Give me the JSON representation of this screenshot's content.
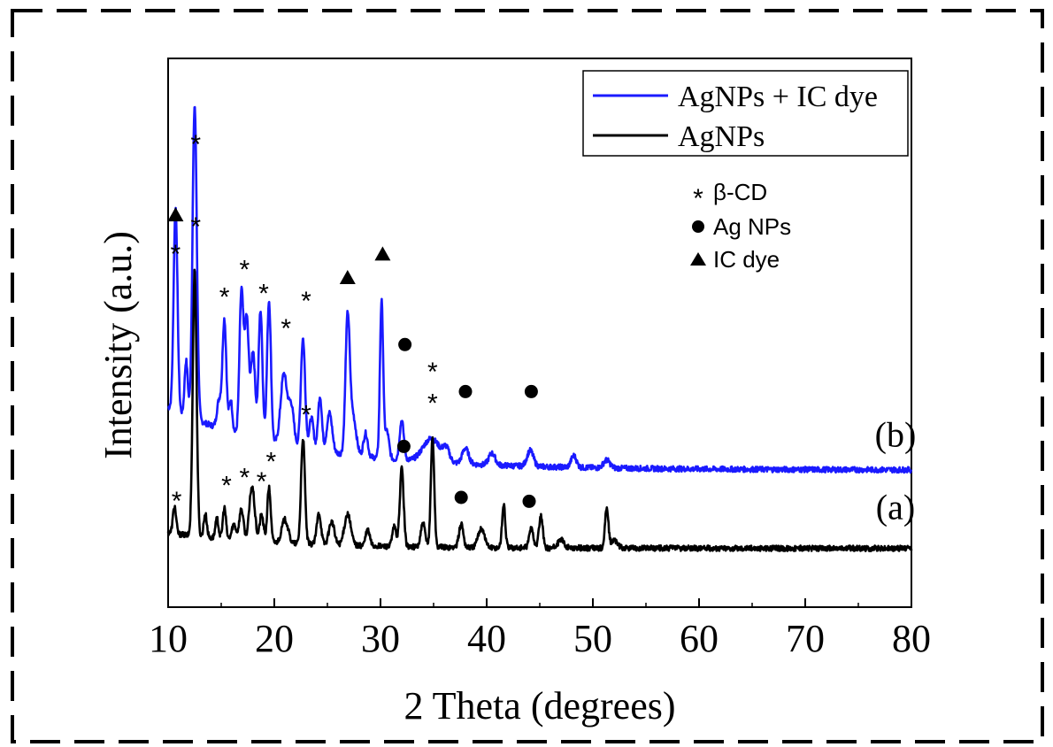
{
  "chart_data": {
    "type": "line",
    "xlabel": "2 Theta (degrees)",
    "ylabel": "Intensity (a.u.)",
    "xlim": [
      10,
      80
    ],
    "x_ticks": [
      10,
      20,
      30,
      40,
      50,
      60,
      70,
      80
    ],
    "x_tick_labels": [
      "10",
      "20",
      "30",
      "40",
      "50",
      "60",
      "70",
      "80"
    ],
    "y_ticks_shown": false,
    "grid": false,
    "legend_position": "top-right",
    "legend": [
      {
        "label": "AgNPs + IC dye",
        "color": "#1a1aff"
      },
      {
        "label": "AgNPs",
        "color": "#000000"
      }
    ],
    "marker_legend": [
      {
        "symbol": "asterisk",
        "label": "β-CD"
      },
      {
        "symbol": "circle",
        "label": "Ag NPs"
      },
      {
        "symbol": "triangle",
        "label": "IC dye"
      }
    ],
    "series": [
      {
        "name": "AgNPs + IC dye",
        "panel_label": "(b)",
        "color": "#1a1aff",
        "baseline": 20,
        "peaks": [
          {
            "x": 10.7,
            "h": 52,
            "w": 0.18
          },
          {
            "x": 11.7,
            "h": 14,
            "w": 0.15
          },
          {
            "x": 12.5,
            "h": 80,
            "w": 0.2
          },
          {
            "x": 14.8,
            "h": 7,
            "w": 0.2
          },
          {
            "x": 15.3,
            "h": 28,
            "w": 0.18
          },
          {
            "x": 15.9,
            "h": 8,
            "w": 0.15
          },
          {
            "x": 16.9,
            "h": 36,
            "w": 0.18
          },
          {
            "x": 17.4,
            "h": 30,
            "w": 0.2
          },
          {
            "x": 18.0,
            "h": 22,
            "w": 0.2
          },
          {
            "x": 18.7,
            "h": 33,
            "w": 0.18
          },
          {
            "x": 19.5,
            "h": 36,
            "w": 0.18
          },
          {
            "x": 20.9,
            "h": 18,
            "w": 0.3
          },
          {
            "x": 21.6,
            "h": 10,
            "w": 0.25
          },
          {
            "x": 22.7,
            "h": 28,
            "w": 0.2
          },
          {
            "x": 23.5,
            "h": 8,
            "w": 0.2
          },
          {
            "x": 24.3,
            "h": 14,
            "w": 0.18
          },
          {
            "x": 25.2,
            "h": 10,
            "w": 0.25
          },
          {
            "x": 26.9,
            "h": 34,
            "w": 0.2
          },
          {
            "x": 27.4,
            "h": 10,
            "w": 0.3
          },
          {
            "x": 28.6,
            "h": 6,
            "w": 0.2
          },
          {
            "x": 30.1,
            "h": 40,
            "w": 0.15
          },
          {
            "x": 30.6,
            "h": 7,
            "w": 0.2
          },
          {
            "x": 32.0,
            "h": 10,
            "w": 0.2
          },
          {
            "x": 34.8,
            "h": 6,
            "w": 0.8
          },
          {
            "x": 36.2,
            "h": 3,
            "w": 0.3
          },
          {
            "x": 38.0,
            "h": 4,
            "w": 0.3
          },
          {
            "x": 40.5,
            "h": 3,
            "w": 0.3
          },
          {
            "x": 44.1,
            "h": 4,
            "w": 0.3
          },
          {
            "x": 48.2,
            "h": 3,
            "w": 0.25
          },
          {
            "x": 51.3,
            "h": 2,
            "w": 0.3
          }
        ],
        "decay": {
          "amplitude": 16,
          "scale": 12,
          "start": 10
        }
      },
      {
        "name": "AgNPs",
        "panel_label": "(a)",
        "color": "#000000",
        "baseline": 0,
        "peaks": [
          {
            "x": 10.6,
            "h": 7,
            "w": 0.15
          },
          {
            "x": 12.5,
            "h": 68,
            "w": 0.18
          },
          {
            "x": 13.5,
            "h": 6,
            "w": 0.15
          },
          {
            "x": 14.6,
            "h": 5,
            "w": 0.15
          },
          {
            "x": 15.3,
            "h": 8,
            "w": 0.15
          },
          {
            "x": 16.2,
            "h": 4,
            "w": 0.2
          },
          {
            "x": 16.9,
            "h": 8,
            "w": 0.2
          },
          {
            "x": 17.9,
            "h": 14,
            "w": 0.25
          },
          {
            "x": 18.8,
            "h": 7,
            "w": 0.18
          },
          {
            "x": 19.5,
            "h": 14,
            "w": 0.16
          },
          {
            "x": 21.0,
            "h": 6,
            "w": 0.3
          },
          {
            "x": 22.7,
            "h": 27,
            "w": 0.18
          },
          {
            "x": 24.2,
            "h": 8,
            "w": 0.2
          },
          {
            "x": 25.4,
            "h": 6,
            "w": 0.25
          },
          {
            "x": 26.9,
            "h": 8,
            "w": 0.3
          },
          {
            "x": 28.8,
            "h": 4,
            "w": 0.2
          },
          {
            "x": 31.3,
            "h": 5,
            "w": 0.18
          },
          {
            "x": 32.0,
            "h": 20,
            "w": 0.18
          },
          {
            "x": 34.0,
            "h": 6,
            "w": 0.2
          },
          {
            "x": 34.9,
            "h": 28,
            "w": 0.16
          },
          {
            "x": 37.6,
            "h": 6,
            "w": 0.2
          },
          {
            "x": 39.5,
            "h": 5,
            "w": 0.3
          },
          {
            "x": 41.6,
            "h": 11,
            "w": 0.15
          },
          {
            "x": 44.2,
            "h": 5,
            "w": 0.2
          },
          {
            "x": 45.1,
            "h": 8,
            "w": 0.18
          },
          {
            "x": 47.0,
            "h": 2,
            "w": 0.3
          },
          {
            "x": 51.3,
            "h": 10,
            "w": 0.16
          },
          {
            "x": 52.0,
            "h": 2,
            "w": 0.3
          }
        ],
        "decay": {
          "amplitude": 4,
          "scale": 10,
          "start": 10
        }
      }
    ],
    "ylim": [
      -15,
      125
    ],
    "panel_labels": [
      {
        "text": "(b)",
        "x": 78.5,
        "y": 26
      },
      {
        "text": "(a)",
        "x": 78.5,
        "y": 7.5
      }
    ],
    "peak_annotations": [
      {
        "series": "AgNPs + IC dye",
        "marker": "asterisk",
        "x": 10.7,
        "y": 76
      },
      {
        "series": "AgNPs + IC dye",
        "marker": "triangle",
        "x": 10.7,
        "y": 85
      },
      {
        "series": "AgNPs + IC dye",
        "marker": "asterisk",
        "x": 12.6,
        "y": 104
      },
      {
        "series": "AgNPs + IC dye",
        "marker": "asterisk",
        "x": 15.3,
        "y": 65
      },
      {
        "series": "AgNPs + IC dye",
        "marker": "asterisk",
        "x": 17.2,
        "y": 72
      },
      {
        "series": "AgNPs + IC dye",
        "marker": "asterisk",
        "x": 19.0,
        "y": 66
      },
      {
        "series": "AgNPs + IC dye",
        "marker": "asterisk",
        "x": 21.1,
        "y": 57
      },
      {
        "series": "AgNPs + IC dye",
        "marker": "asterisk",
        "x": 23.0,
        "y": 64
      },
      {
        "series": "AgNPs + IC dye",
        "marker": "triangle",
        "x": 26.9,
        "y": 69
      },
      {
        "series": "AgNPs + IC dye",
        "marker": "triangle",
        "x": 30.2,
        "y": 75
      },
      {
        "series": "AgNPs + IC dye",
        "marker": "circle",
        "x": 32.3,
        "y": 52
      },
      {
        "series": "AgNPs + IC dye",
        "marker": "asterisk",
        "x": 34.9,
        "y": 46
      },
      {
        "series": "AgNPs + IC dye",
        "marker": "circle",
        "x": 38.0,
        "y": 40
      },
      {
        "series": "AgNPs + IC dye",
        "marker": "circle",
        "x": 44.2,
        "y": 40
      },
      {
        "series": "AgNPs",
        "marker": "asterisk",
        "x": 10.8,
        "y": 13
      },
      {
        "series": "AgNPs",
        "marker": "asterisk",
        "x": 12.6,
        "y": 83
      },
      {
        "series": "AgNPs",
        "marker": "asterisk",
        "x": 15.5,
        "y": 17
      },
      {
        "series": "AgNPs",
        "marker": "asterisk",
        "x": 17.2,
        "y": 19
      },
      {
        "series": "AgNPs",
        "marker": "asterisk",
        "x": 18.8,
        "y": 18
      },
      {
        "series": "AgNPs",
        "marker": "asterisk",
        "x": 19.7,
        "y": 23
      },
      {
        "series": "AgNPs",
        "marker": "asterisk",
        "x": 23.0,
        "y": 35
      },
      {
        "series": "AgNPs",
        "marker": "circle",
        "x": 32.2,
        "y": 26
      },
      {
        "series": "AgNPs",
        "marker": "asterisk",
        "x": 34.9,
        "y": 38
      },
      {
        "series": "AgNPs",
        "marker": "circle",
        "x": 37.6,
        "y": 13
      },
      {
        "series": "AgNPs",
        "marker": "circle",
        "x": 44.0,
        "y": 12
      }
    ]
  }
}
